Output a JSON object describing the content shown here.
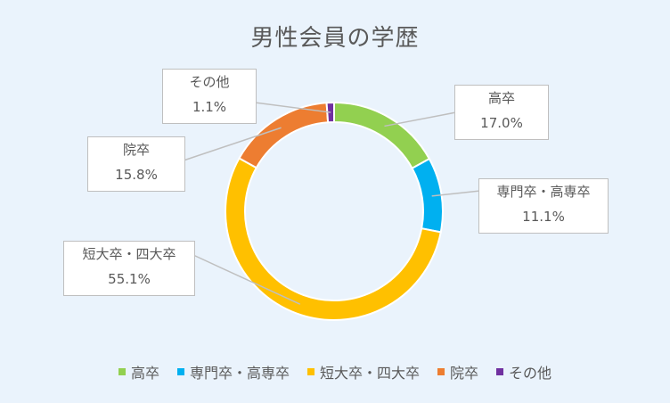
{
  "chart_data": {
    "type": "pie",
    "donut": true,
    "title": "男性会員の学歴",
    "categories": [
      "高卒",
      "専門卒・高専卒",
      "短大卒・四大卒",
      "院卒",
      "その他"
    ],
    "values": [
      17.0,
      11.1,
      55.1,
      15.8,
      1.1
    ],
    "value_labels": [
      "17.0%",
      "11.1%",
      "55.1%",
      "15.8%",
      "1.1%"
    ],
    "colors": [
      "#92d050",
      "#00b0f0",
      "#ffc000",
      "#ed7d31",
      "#7030a0"
    ],
    "legend_position": "bottom",
    "data_labels": "callouts with leader lines"
  }
}
